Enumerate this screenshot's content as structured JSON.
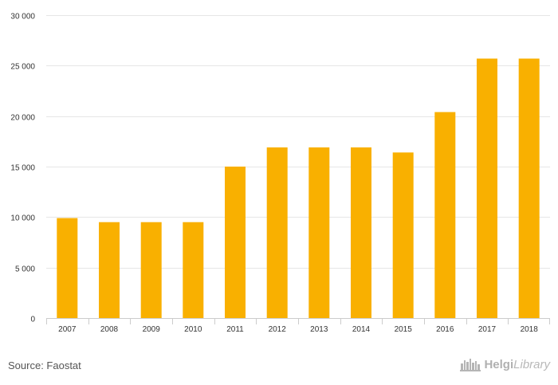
{
  "chart_data": {
    "type": "bar",
    "categories": [
      "2007",
      "2008",
      "2009",
      "2010",
      "2011",
      "2012",
      "2013",
      "2014",
      "2015",
      "2016",
      "2017",
      "2018"
    ],
    "values": [
      9900,
      9500,
      9500,
      9500,
      15000,
      16900,
      16900,
      16900,
      16400,
      20400,
      25700,
      25700
    ],
    "ylim": [
      0,
      30000
    ],
    "yticks": [
      0,
      5000,
      10000,
      15000,
      20000,
      25000,
      30000
    ],
    "ytick_labels": [
      "0",
      "5 000",
      "10 000",
      "15 000",
      "20 000",
      "25 000",
      "30 000"
    ],
    "grid": true,
    "bar_color": "#F9B000"
  },
  "footer": {
    "source": "Source: Faostat",
    "logo_helgi": "Helgi",
    "logo_library": "Library",
    "logo_icon": "city-skyline-icon"
  }
}
